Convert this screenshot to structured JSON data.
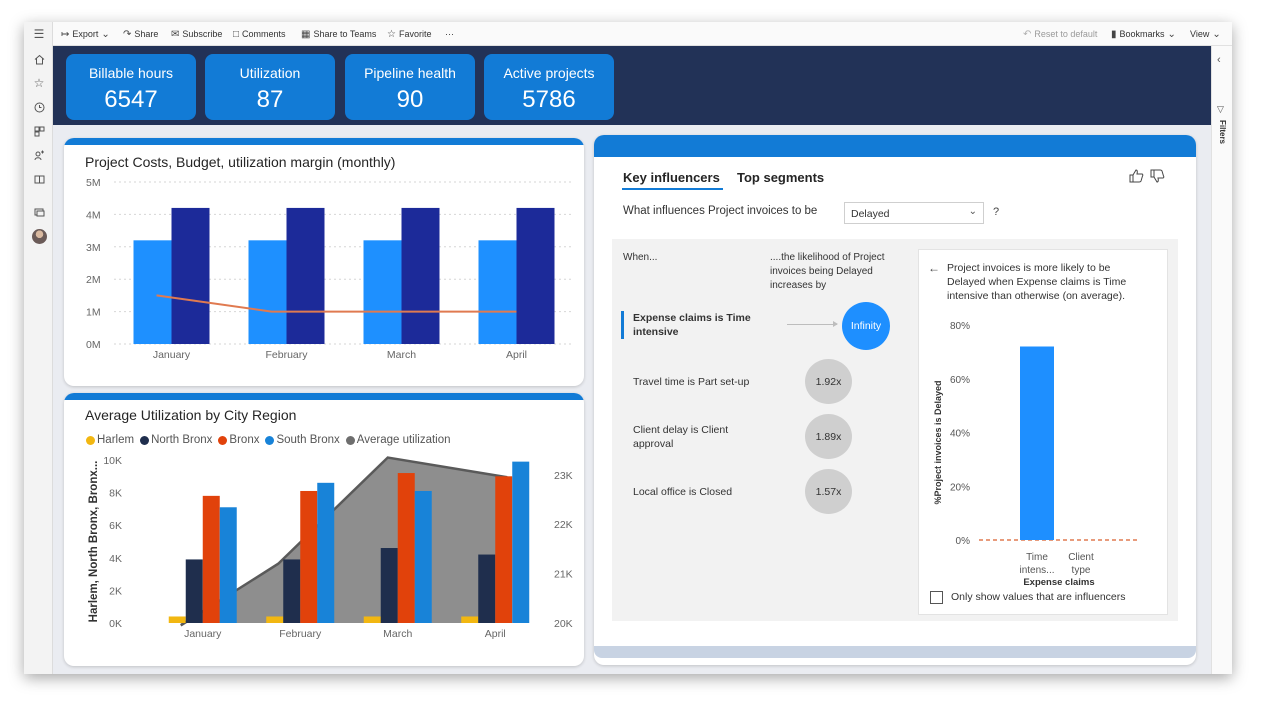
{
  "toolbar": {
    "menu_icon": "hamburger-icon",
    "export": "Export",
    "share": "Share",
    "subscribe": "Subscribe",
    "comments": "Comments",
    "share_to_teams": "Share to Teams",
    "favorite": "Favorite",
    "more": "···",
    "reset": "Reset to default",
    "bookmarks": "Bookmarks",
    "view": "View"
  },
  "rail": {
    "icons": [
      "home-icon",
      "star-icon",
      "clock-icon",
      "apps-icon",
      "shared-icon",
      "workspace-icon",
      "monitor-icon",
      "avatar"
    ]
  },
  "filters": {
    "label": "Filters"
  },
  "kpis": [
    {
      "label": "Billable hours",
      "value": "6547"
    },
    {
      "label": "Utilization",
      "value": "87"
    },
    {
      "label": "Pipeline health",
      "value": "90"
    },
    {
      "label": "Active projects",
      "value": "5786"
    }
  ],
  "colors": {
    "accent": "#127bd6",
    "band": "#223257",
    "bar_light": "#1e90ff",
    "bar_dark": "#1c2a99",
    "line": "#e07a50"
  },
  "chart_data": [
    {
      "type": "bar",
      "title": "Project Costs, Budget, utilization margin (monthly)",
      "categories": [
        "January",
        "February",
        "March",
        "April"
      ],
      "y_ticks": [
        "5M",
        "4M",
        "3M",
        "2M",
        "1M",
        "0M"
      ],
      "ylim": [
        0,
        5000000
      ],
      "grid": true,
      "series": [
        {
          "values": [
            3200000,
            3200000,
            3200000,
            3200000
          ],
          "kind": "bar",
          "color": "#1e90ff"
        },
        {
          "values": [
            4200000,
            4200000,
            4200000,
            4200000
          ],
          "kind": "bar",
          "color": "#1c2a99"
        },
        {
          "values": [
            1500000,
            1000000,
            1000000,
            1000000
          ],
          "kind": "line",
          "color": "#e07a50"
        }
      ]
    },
    {
      "type": "bar",
      "title": "Average Utilization by City Region",
      "ylabel": "Harlem, North Bronx, Bronx...",
      "categories": [
        "January",
        "February",
        "March",
        "April"
      ],
      "y_ticks": [
        "10K",
        "8K",
        "6K",
        "4K",
        "2K",
        "0K"
      ],
      "y2_ticks": [
        "23K",
        "22K",
        "21K",
        "20K"
      ],
      "ylim": [
        0,
        10000
      ],
      "y2lim": [
        20000,
        23300
      ],
      "legend_position": "top-left",
      "series": [
        {
          "name": "Harlem",
          "color": "#f2b711",
          "values": [
            400,
            400,
            400,
            400
          ]
        },
        {
          "name": "North Bronx",
          "color": "#1f2e4d",
          "values": [
            3900,
            3900,
            4600,
            4200
          ]
        },
        {
          "name": "Bronx",
          "color": "#e1420b",
          "values": [
            7800,
            8100,
            9200,
            9000
          ]
        },
        {
          "name": "South Bronx",
          "color": "#1883d8",
          "values": [
            7100,
            8600,
            8100,
            9900
          ]
        },
        {
          "name": "Average utilization",
          "color": "#6e6e6e",
          "kind": "area",
          "axis": "y2",
          "values": [
            19950,
            21200,
            23350,
            22950
          ]
        }
      ]
    },
    {
      "type": "bar",
      "ylabel": "%Project invoices is Delayed",
      "xlabel": "Expense claims",
      "categories": [
        "Time intens...",
        "Client type"
      ],
      "values": [
        72,
        0
      ],
      "y_ticks": [
        "80%",
        "60%",
        "40%",
        "20%",
        "0%"
      ],
      "ylim": [
        0,
        80
      ],
      "reference_line": 0
    }
  ],
  "key_influencers": {
    "tab_active": "Key influencers",
    "tab_other": "Top segments",
    "thumbs_up_icon": "thumbs-up-icon",
    "thumbs_down_icon": "thumbs-down-icon",
    "question": "What influences Project invoices to be",
    "select_value": "Delayed",
    "help": "?",
    "when_label": "When...",
    "likelihood_label": "....the likelihood of Project invoices being Delayed increases by",
    "influencers": [
      {
        "label": "Expense claims is Time intensive",
        "value": "Infinity",
        "selected": true
      },
      {
        "label": "Travel time is Part set-up",
        "value": "1.92x"
      },
      {
        "label": "Client delay is Client approval",
        "value": "1.89x"
      },
      {
        "label": "Local office is Closed",
        "value": "1.57x"
      }
    ],
    "detail_text": "Project invoices is more likely to be Delayed when Expense claims is Time intensive than otherwise (on average).",
    "checkbox_label": "Only show values that are influencers"
  }
}
